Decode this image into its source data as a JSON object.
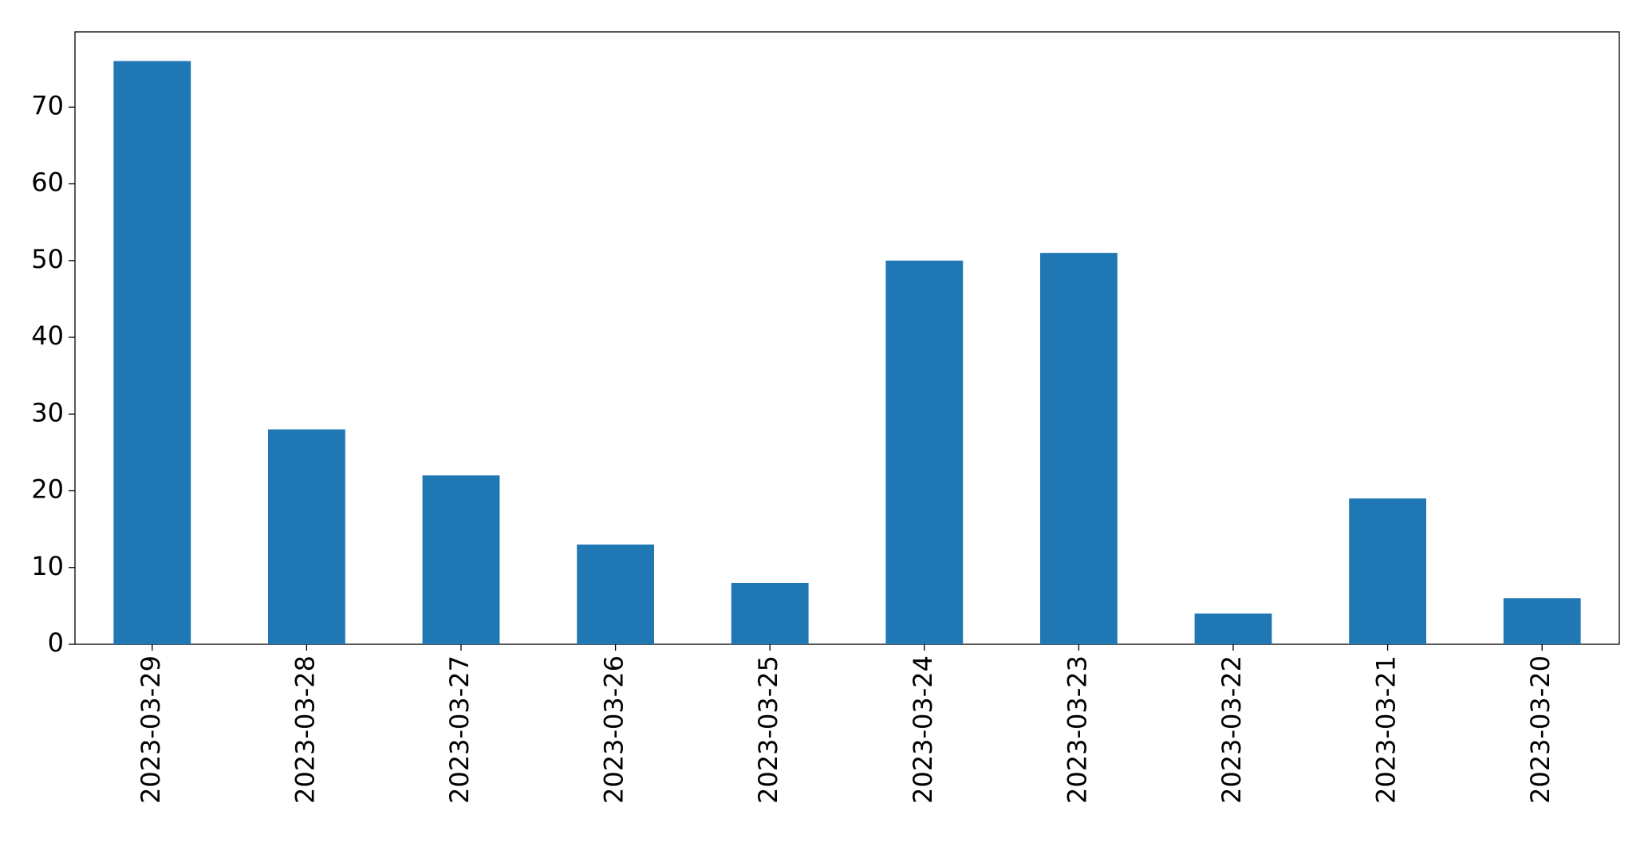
{
  "chart_data": {
    "type": "bar",
    "categories": [
      "2023-03-29",
      "2023-03-28",
      "2023-03-27",
      "2023-03-26",
      "2023-03-25",
      "2023-03-24",
      "2023-03-23",
      "2023-03-22",
      "2023-03-21",
      "2023-03-20"
    ],
    "values": [
      76,
      28,
      22,
      13,
      8,
      50,
      51,
      4,
      19,
      6
    ],
    "color": "#1f77b4",
    "ylim": [
      0,
      79.8
    ],
    "yticks": [
      0,
      10,
      20,
      30,
      40,
      50,
      60,
      70
    ],
    "grid": false
  }
}
